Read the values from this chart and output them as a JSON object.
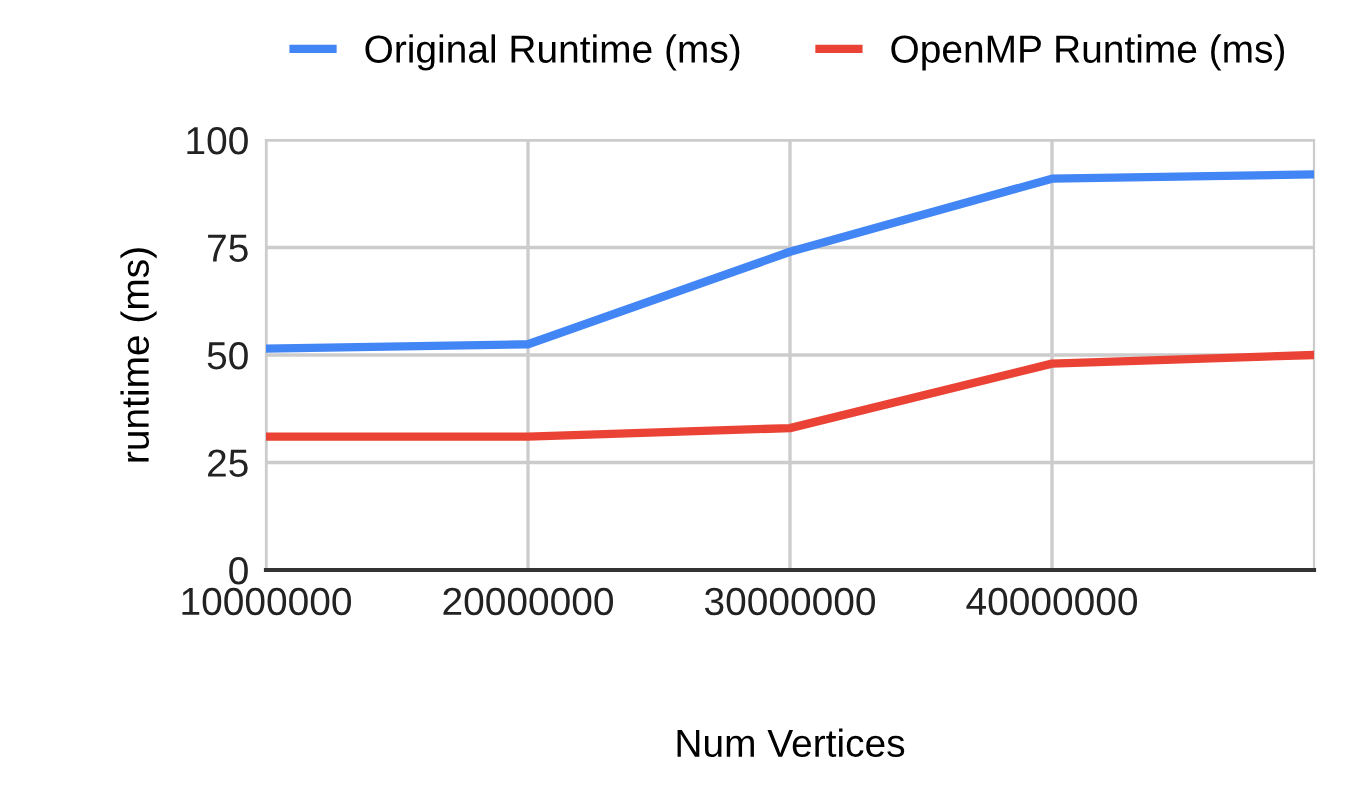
{
  "chart_data": {
    "type": "line",
    "xlabel": "Num Vertices",
    "ylabel": "runtime (ms)",
    "x": [
      10000000,
      20000000,
      30000000,
      40000000,
      50000000
    ],
    "series": [
      {
        "name": "Original Runtime (ms)",
        "color": "#4285f4",
        "values": [
          51.5,
          52.5,
          74,
          91,
          92
        ]
      },
      {
        "name": "OpenMP Runtime (ms)",
        "color": "#ea4335",
        "values": [
          31,
          31,
          33,
          48,
          50
        ]
      }
    ],
    "xlim": [
      10000000,
      50000000
    ],
    "xticks": [
      10000000,
      20000000,
      30000000,
      40000000
    ],
    "ylim": [
      0,
      100
    ],
    "yticks": [
      0,
      25,
      50,
      75,
      100
    ],
    "grid": true,
    "legend": "top",
    "marker": "none",
    "line_style": "solid"
  }
}
